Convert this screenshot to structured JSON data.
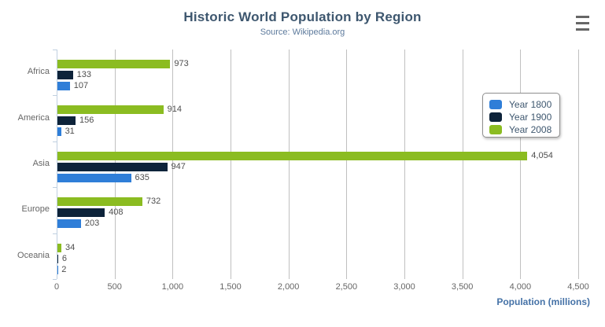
{
  "header": {
    "title": "Historic World Population by Region",
    "subtitle": "Source: Wikipedia.org"
  },
  "chart_data": {
    "type": "bar",
    "orientation": "horizontal",
    "title": "Historic World Population by Region",
    "subtitle": "Source: Wikipedia.org",
    "categories": [
      "Africa",
      "America",
      "Asia",
      "Europe",
      "Oceania"
    ],
    "series": [
      {
        "name": "Year 1800",
        "color": "#2f7ed8",
        "values": [
          107,
          31,
          635,
          203,
          2
        ],
        "labels": [
          "107",
          "31",
          "635",
          "203",
          "2"
        ]
      },
      {
        "name": "Year 1900",
        "color": "#0d233a",
        "values": [
          133,
          156,
          947,
          408,
          6
        ],
        "labels": [
          "133",
          "156",
          "947",
          "408",
          "6"
        ]
      },
      {
        "name": "Year 2008",
        "color": "#8bbc21",
        "values": [
          973,
          914,
          4054,
          732,
          34
        ],
        "labels": [
          "973",
          "914",
          "4,054",
          "732",
          "34"
        ]
      }
    ],
    "row_order_top_to_bottom": [
      "Year 2008",
      "Year 1900",
      "Year 1800"
    ],
    "xlabel": "Population (millions)",
    "ylabel": "",
    "xlim": [
      0,
      4500
    ],
    "tick_values": [
      0,
      500,
      1000,
      1500,
      2000,
      2500,
      3000,
      3500,
      4000,
      4500
    ],
    "tick_labels": [
      "0",
      "500",
      "1,000",
      "1,500",
      "2,000",
      "2,500",
      "3,000",
      "3,500",
      "4,000",
      "4,500"
    ],
    "grid": true,
    "legend_position": "middle-right"
  },
  "colors": {
    "title": "#3E576F",
    "subtitle": "#5D7A9C",
    "axis_title": "#4572A7",
    "grid": "#C0C0C0",
    "axis_line": "#C0D0E0",
    "tick_label": "#666666",
    "category_label": "#666666",
    "data_label": "#4D4D4D",
    "legend_text": "#3E576F",
    "menu_icon": "#666666"
  }
}
